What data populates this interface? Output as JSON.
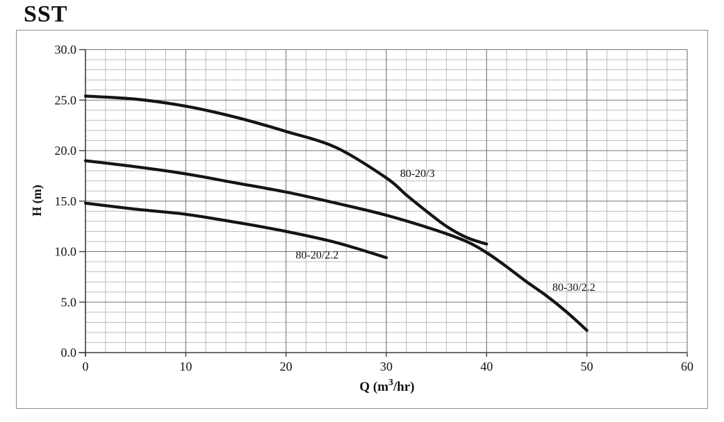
{
  "title": "SST",
  "chart_data": {
    "type": "line",
    "title": "SST",
    "xlabel": {
      "prefix": "Q (m",
      "sup": "3",
      "suffix": "/hr)",
      "full": "Q (m3/hr)"
    },
    "ylabel": "H (m)",
    "xlim": [
      0,
      60
    ],
    "ylim": [
      0,
      30
    ],
    "x_major_step": 10,
    "x_minor_step": 2,
    "y_major_step": 5,
    "y_minor_step": 1,
    "grid": "on",
    "legend_position": "inline-labels",
    "x_tick_labels": [
      "0",
      "10",
      "20",
      "30",
      "40",
      "50",
      "60"
    ],
    "y_tick_labels": [
      "0.0",
      "5.0",
      "10.0",
      "15.0",
      "20.0",
      "25.0",
      "30.0"
    ],
    "series": [
      {
        "name": "80-20/3",
        "label": {
          "q": 33.1,
          "h": 17.4
        },
        "points": [
          [
            0,
            25.4
          ],
          [
            5,
            25.1
          ],
          [
            10,
            24.4
          ],
          [
            15,
            23.3
          ],
          [
            20,
            21.9
          ],
          [
            25,
            20.3
          ],
          [
            30,
            17.3
          ],
          [
            32,
            15.6
          ],
          [
            34,
            14.0
          ],
          [
            36,
            12.5
          ],
          [
            38,
            11.4
          ],
          [
            40,
            10.75
          ]
        ]
      },
      {
        "name": "80-30/2.2",
        "label": {
          "q": 48.7,
          "h": 6.1
        },
        "points": [
          [
            0,
            19.0
          ],
          [
            5,
            18.4
          ],
          [
            10,
            17.7
          ],
          [
            15,
            16.8
          ],
          [
            20,
            15.9
          ],
          [
            25,
            14.8
          ],
          [
            30,
            13.6
          ],
          [
            35,
            12.1
          ],
          [
            38,
            11.0
          ],
          [
            40,
            9.9
          ],
          [
            42,
            8.5
          ],
          [
            44,
            7.0
          ],
          [
            46,
            5.6
          ],
          [
            48,
            4.0
          ],
          [
            50,
            2.2
          ]
        ]
      },
      {
        "name": "80-20/2.2",
        "label": {
          "q": 23.1,
          "h": 9.3
        },
        "points": [
          [
            0,
            14.8
          ],
          [
            5,
            14.2
          ],
          [
            10,
            13.7
          ],
          [
            15,
            12.9
          ],
          [
            20,
            12.0
          ],
          [
            25,
            10.9
          ],
          [
            30,
            9.4
          ]
        ]
      }
    ],
    "colors": {
      "curve": "#141414",
      "grid_minor": "#b4b4b4",
      "grid_major": "#757575",
      "axis": "#3c3c3c",
      "frame_border": "#8c8c8c",
      "text": "#111111"
    }
  }
}
